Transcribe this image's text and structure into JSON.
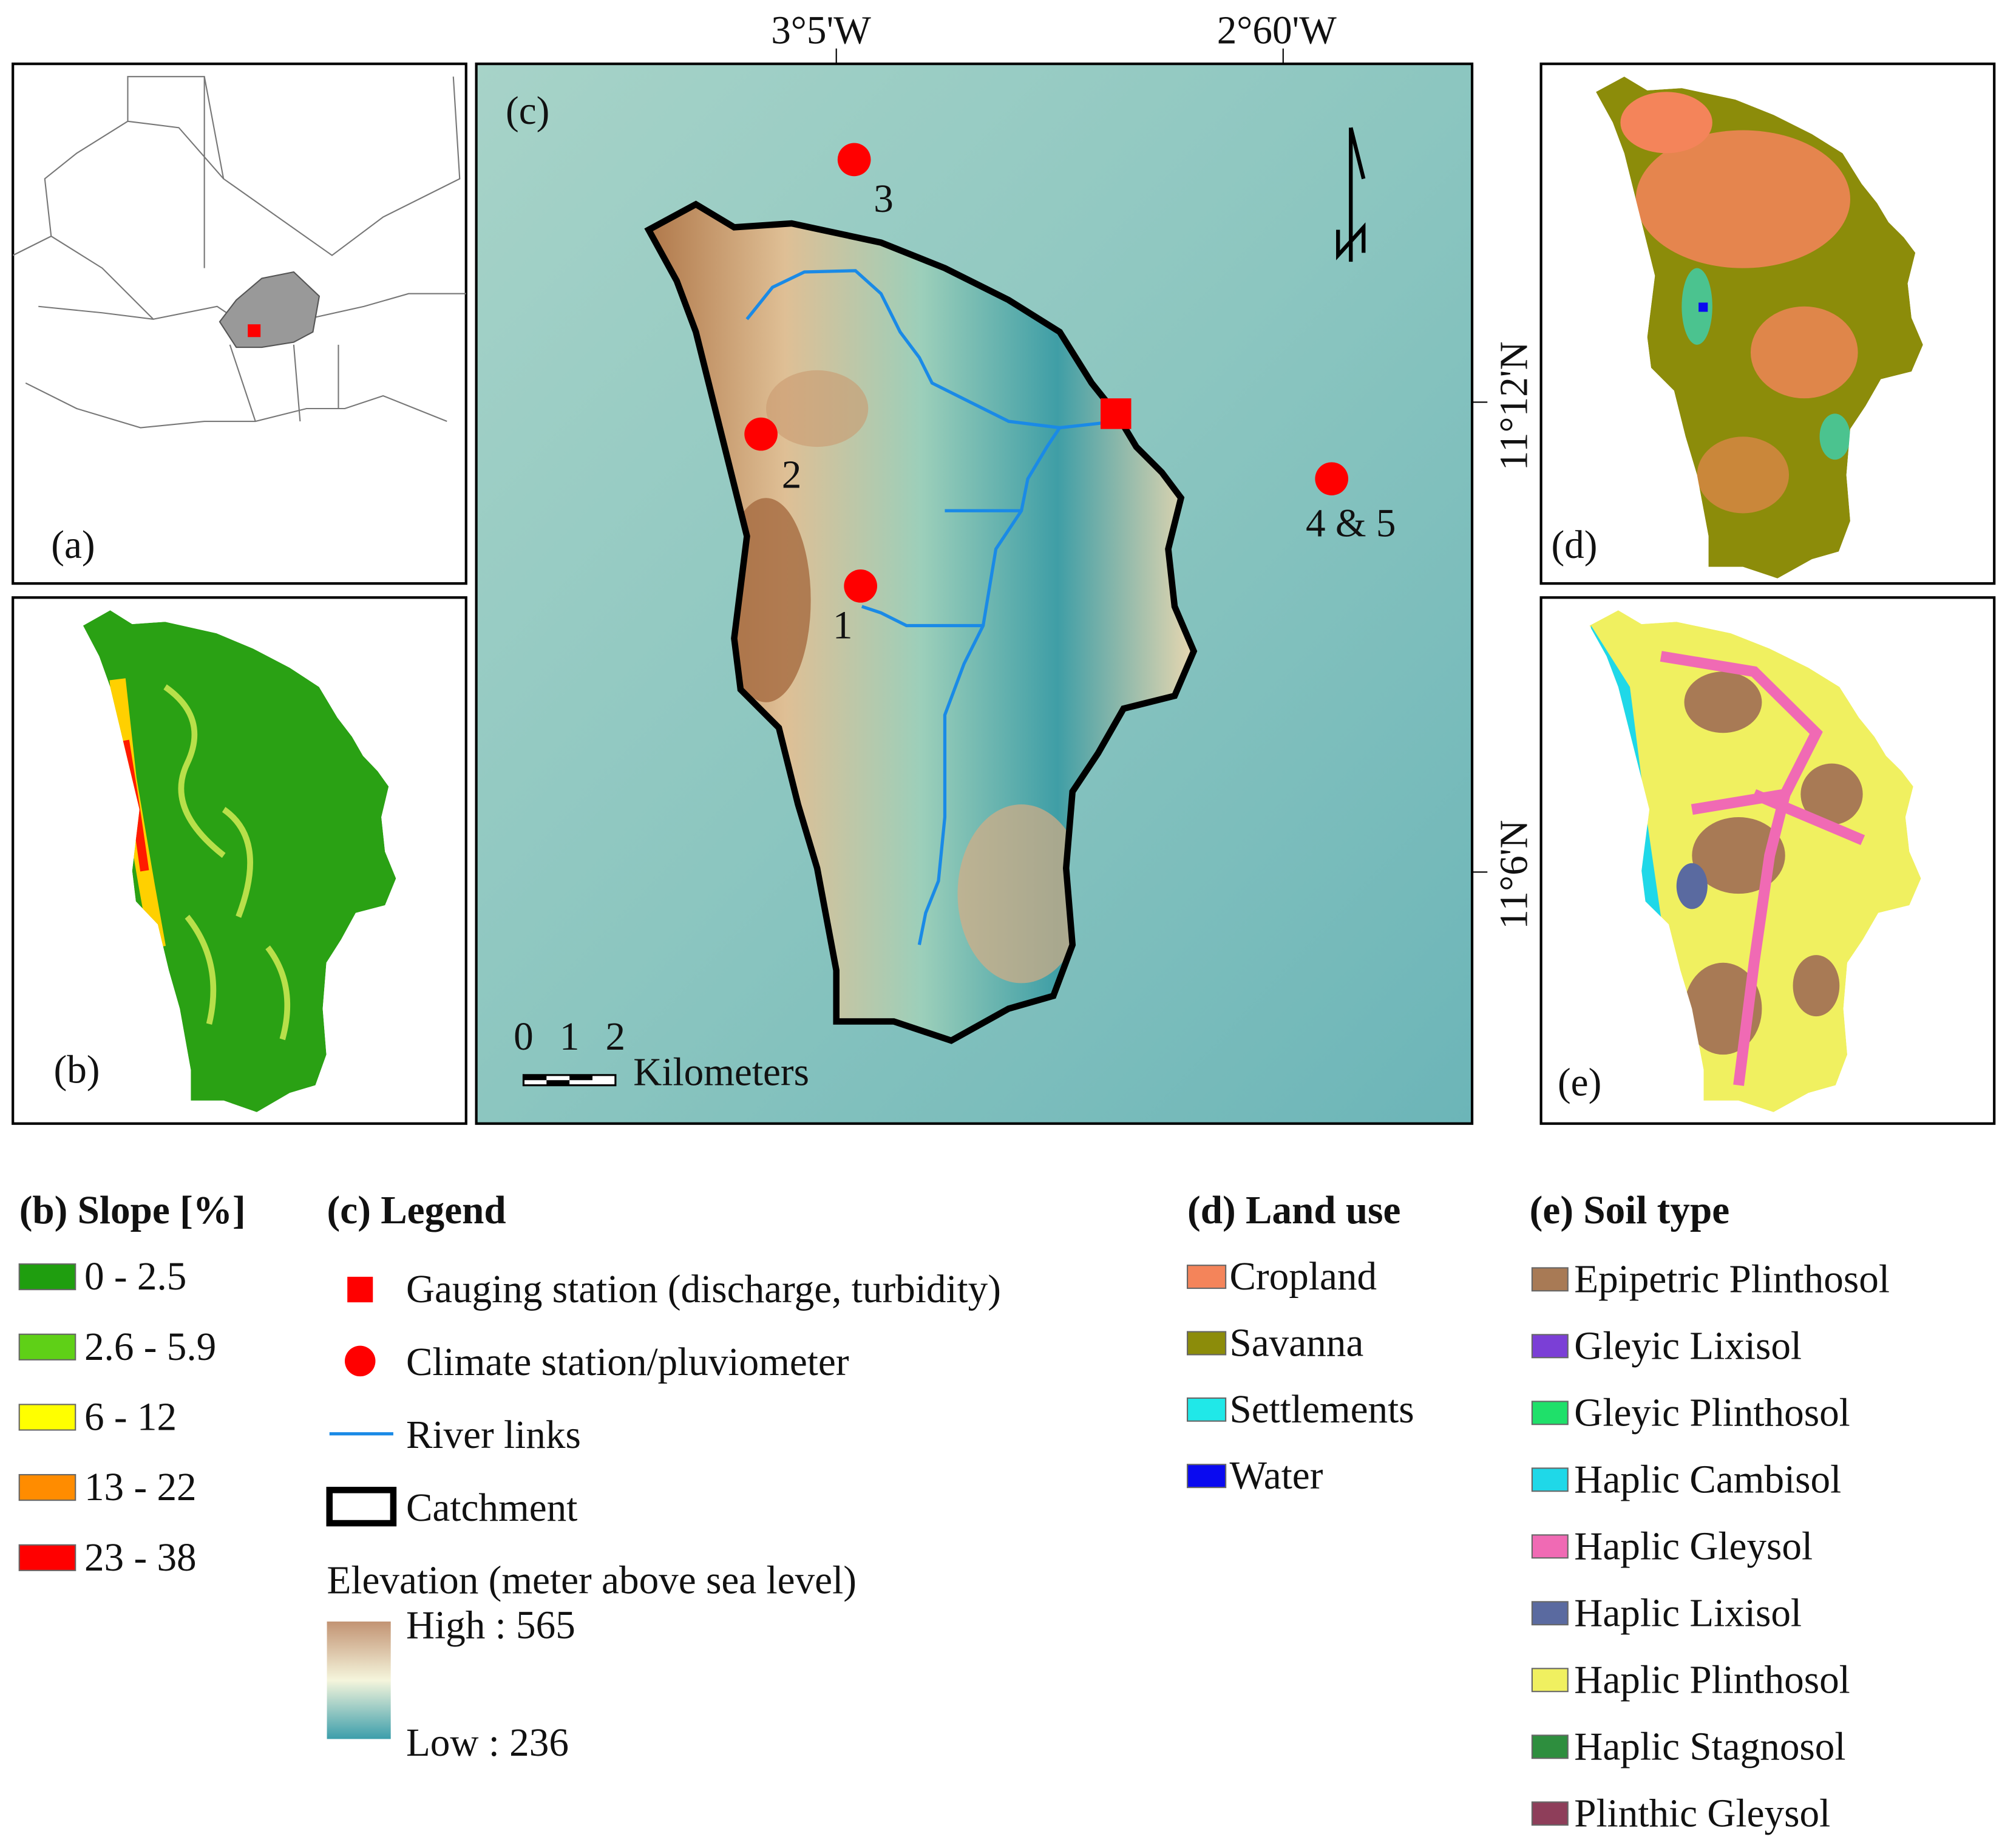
{
  "panels": [
    {
      "label": "(a)"
    },
    {
      "label": "(b)"
    },
    {
      "label": "(c)"
    },
    {
      "label": "(d)"
    },
    {
      "label": "(e)"
    }
  ],
  "map_labels": {
    "top": [
      "3°5'W",
      "2°60'W"
    ],
    "right": [
      "11°12'N",
      "11°6'N"
    ]
  },
  "stations": [
    {
      "label": "1"
    },
    {
      "label": "2"
    },
    {
      "label": "3"
    },
    {
      "label": "4 & 5"
    }
  ],
  "scale_bar": {
    "ticks": [
      "0",
      "1",
      "2"
    ],
    "unit": "Kilometers"
  },
  "legend_slope": {
    "title": "(b) Slope [%]",
    "items": [
      {
        "label": "0 - 2.5",
        "color": "#1f9e0f"
      },
      {
        "label": "2.6 - 5.9",
        "color": "#5fd017"
      },
      {
        "label": "6 - 12",
        "color": "#ffff00"
      },
      {
        "label": "13 - 22",
        "color": "#ff8c00"
      },
      {
        "label": "23 - 38",
        "color": "#ff0000"
      }
    ]
  },
  "legend_c": {
    "title": "(c) Legend",
    "items": [
      {
        "label": "Gauging station (discharge, turbidity)"
      },
      {
        "label": "Climate station/pluviometer"
      },
      {
        "label": "River links"
      },
      {
        "label": "Catchment"
      }
    ],
    "elevation_title": "Elevation (meter above sea level)",
    "high": "High : 565",
    "low": "Low : 236"
  },
  "legend_landuse": {
    "title": "(d) Land use",
    "items": [
      {
        "label": "Cropland",
        "color": "#f4845a"
      },
      {
        "label": "Savanna",
        "color": "#8c8c0a"
      },
      {
        "label": "Settlements",
        "color": "#20e8e8"
      },
      {
        "label": "Water",
        "color": "#0a0af0"
      }
    ]
  },
  "legend_soil": {
    "title": "(e) Soil type",
    "items": [
      {
        "label": "Epipetric Plinthosol",
        "color": "#a87a55"
      },
      {
        "label": "Gleyic Lixisol",
        "color": "#7b3fd6"
      },
      {
        "label": "Gleyic Plinthosol",
        "color": "#1fe06a"
      },
      {
        "label": "Haplic Cambisol",
        "color": "#1fd8e8"
      },
      {
        "label": "Haplic Gleysol",
        "color": "#f06ab4"
      },
      {
        "label": "Haplic Lixisol",
        "color": "#5a6aa0"
      },
      {
        "label": "Haplic Plinthosol",
        "color": "#f0f060"
      },
      {
        "label": "Haplic Stagnosol",
        "color": "#2e8e3e"
      },
      {
        "label": "Plinthic Gleysol",
        "color": "#8e3e5a"
      }
    ]
  }
}
